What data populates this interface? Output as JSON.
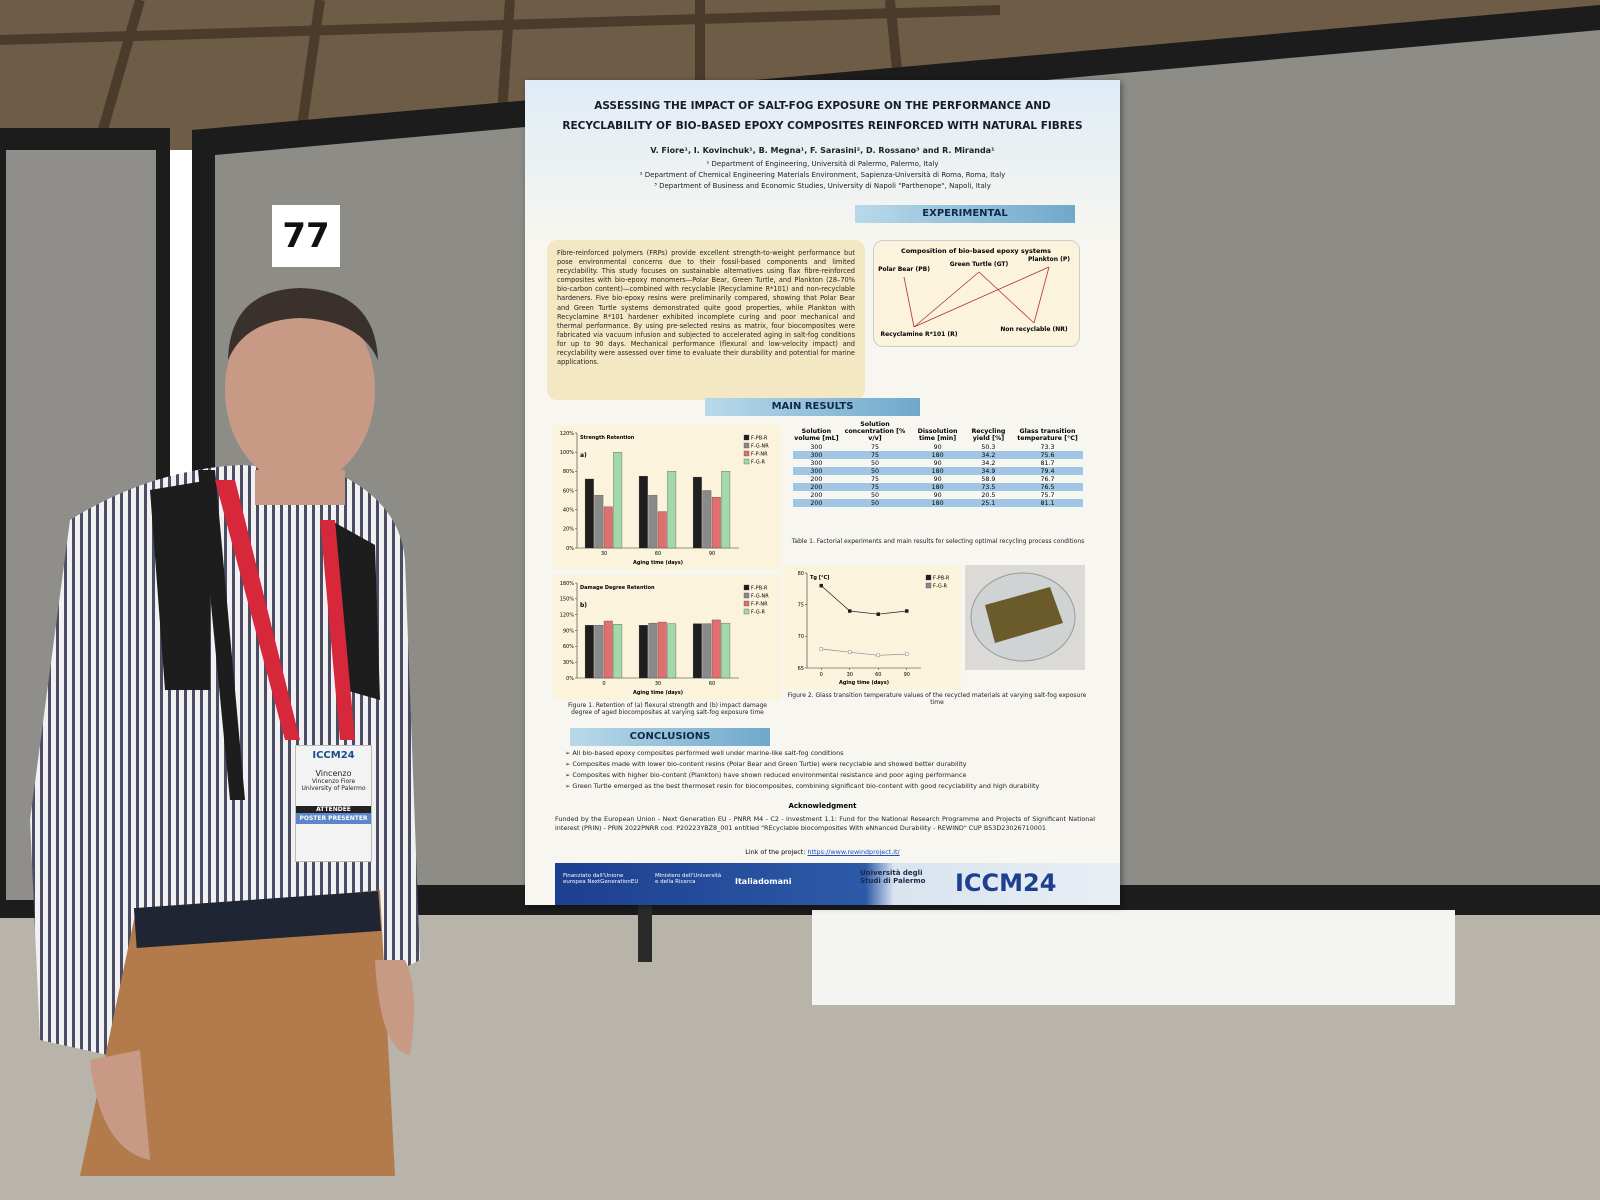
{
  "scene": {
    "booth_number": "77"
  },
  "badge": {
    "event": "ICCM24",
    "first_name": "Vincenzo",
    "full_name": "Vincenzo Fiore",
    "affiliation": "University of Palermo",
    "role": "ATTENDEE",
    "ribbon": "POSTER PRESENTER"
  },
  "poster": {
    "title": [
      "ASSESSING THE IMPACT OF SALT-FOG EXPOSURE ON THE PERFORMANCE AND",
      "RECYCLABILITY OF BIO-BASED EPOXY COMPOSITES REINFORCED WITH NATURAL FIBRES"
    ],
    "authors": "V. Fiore¹, I. Kovinchuk¹, B. Megna¹, F. Sarasini², D. Rossano³ and R. Miranda¹",
    "affiliations": [
      "¹ Department of Engineering, Università di Palermo, Palermo, Italy",
      "² Department of Chemical Engineering Materials Environment, Sapienza-Università di Roma, Roma, Italy",
      "³ Department of Business and Economic Studies, University di Napoli \"Parthenope\", Napoli, Italy"
    ],
    "experimental": {
      "heading": "EXPERIMENTAL",
      "abstract": "Fibre-reinforced polymers (FRPs) provide excellent strength-to-weight performance but pose environmental concerns due to their fossil-based components and limited recyclability. This study focuses on sustainable alternatives using flax fibre-reinforced composites with bio-epoxy monomers—Polar Bear, Green Turtle, and Plankton (28–70% bio-carbon content)—combined with recyclable (Recyclamine R*101) and non-recyclable hardeners. Five bio-epoxy resins were preliminarily compared, showing that Polar Bear and Green Turtle systems demonstrated quite good properties, while Plankton with Recyclamine R*101 hardener exhibited incomplete curing and poor mechanical and thermal performance. By using pre-selected resins as matrix, four biocomposites were fabricated via vacuum infusion and subjected to accelerated aging in salt-fog conditions for up to 90 days. Mechanical performance (flexural and low-velocity impact) and recyclability were assessed over time to evaluate their durability and potential for marine applications.",
      "diagram": {
        "title": "Composition of bio-based epoxy systems",
        "polar_bear": "Polar Bear (PB)",
        "green_turtle": "Green Turtle (GT)",
        "plankton": "Plankton (P)",
        "recyclable": "Recyclamine R*101 (R)",
        "non_recyclable": "Non recyclable (NR)"
      }
    },
    "main_results": {
      "heading": "MAIN RESULTS",
      "table": {
        "headers": [
          "Solution volume [mL]",
          "Solution concentration [% v/v]",
          "Dissolution time [min]",
          "Recycling yield [%]",
          "Glass transition temperature [°C]"
        ],
        "rows": [
          [
            300,
            75,
            90,
            50.3,
            73.3
          ],
          [
            300,
            75,
            180,
            34.2,
            75.6
          ],
          [
            300,
            50,
            90,
            34.2,
            81.7
          ],
          [
            300,
            50,
            180,
            34.9,
            79.4
          ],
          [
            200,
            75,
            90,
            58.9,
            76.7
          ],
          [
            200,
            75,
            180,
            73.5,
            76.5
          ],
          [
            200,
            50,
            90,
            20.5,
            75.7
          ],
          [
            200,
            50,
            180,
            25.1,
            81.1
          ]
        ],
        "caption": "Table 1. Factorial experiments and main results for selecting optimal recycling process conditions"
      },
      "figure1_caption": "Figure 1. Retention of (a) flexural strength and (b) impact damage degree of aged biocomposites at varying salt-fog exposure time",
      "figure2_caption": "Figure 2. Glass transition temperature values of the recycled materials at varying salt-fog exposure time"
    },
    "conclusions": {
      "heading": "CONCLUSIONS",
      "items": [
        "All bio-based epoxy composites performed well under marine-like salt-fog conditions",
        "Composites made with lower bio-content resins (Polar Bear and Green Turtle) were recyclable and showed better durability",
        "Composites with higher bio-content (Plankton) have shown reduced environmental resistance and poor aging performance",
        "Green Turtle emerged as the best thermoset resin for biocomposites, combining significant bio-content with good recyclability and high durability"
      ]
    },
    "acknowledgment": {
      "heading": "Acknowledgment",
      "text": "Funded by the European Union - Next Generation EU - PNRR M4 - C2 - investment 1.1: Fund for the National Research Programme and Projects of Significant National interest (PRIN) - PRIN 2022PNRR cod. P20223YBZ8_001 entitled \"REcyclable biocomposites With eNhanced Durability - REWIND\" CUP B53D23026710001",
      "link_label": "Link of the project:",
      "link": "https://www.rewindproject.it/"
    },
    "footer": {
      "eu": "Finanziato dall'Unione europea NextGenerationEU",
      "ministry": "Ministero dell'Università e della Ricerca",
      "italiadomani": "Italiadomani",
      "university": "Università degli Studi di Palermo",
      "conference": "ICCM24"
    }
  },
  "chart_data": [
    {
      "type": "bar",
      "panel_label": "a)",
      "y_label": "Strength Retention",
      "x_label": "Aging time (days)",
      "categories": [
        "30",
        "60",
        "90"
      ],
      "series": [
        {
          "name": "F-PB-R",
          "color": "#1e1e1e",
          "values": [
            72,
            75,
            74
          ]
        },
        {
          "name": "F-G-NR",
          "color": "#8a8a8a",
          "values": [
            55,
            55,
            60
          ]
        },
        {
          "name": "F-P-NR",
          "color": "#e06f6f",
          "values": [
            43,
            38,
            53
          ]
        },
        {
          "name": "F-G-R",
          "color": "#a3d9a8",
          "values": [
            100,
            80,
            80
          ]
        }
      ],
      "ylim": [
        0,
        120
      ],
      "yticks": [
        {
          "value": 0,
          "label": "0%"
        },
        {
          "value": 20,
          "label": "20%"
        },
        {
          "value": 40,
          "label": "40%"
        },
        {
          "value": 60,
          "label": "60%"
        },
        {
          "value": 80,
          "label": "80%"
        },
        {
          "value": 100,
          "label": "100%"
        },
        {
          "value": 120,
          "label": "120%"
        }
      ]
    },
    {
      "type": "bar",
      "panel_label": "b)",
      "y_label": "Damage Degree Retention",
      "x_label": "Aging time (days)",
      "categories": [
        "0",
        "30",
        "60"
      ],
      "series": [
        {
          "name": "F-PB-R",
          "color": "#1e1e1e",
          "values": [
            100,
            100,
            103
          ]
        },
        {
          "name": "F-G-NR",
          "color": "#8a8a8a",
          "values": [
            100,
            104,
            103
          ]
        },
        {
          "name": "F-P-NR",
          "color": "#e06f6f",
          "values": [
            108,
            106,
            110
          ]
        },
        {
          "name": "F-G-R",
          "color": "#a3d9a8",
          "values": [
            102,
            103,
            104
          ]
        }
      ],
      "ylim": [
        0,
        180
      ],
      "yticks": [
        {
          "value": 0,
          "label": "0%"
        },
        {
          "value": 30,
          "label": "30%"
        },
        {
          "value": 60,
          "label": "60%"
        },
        {
          "value": 90,
          "label": "90%"
        },
        {
          "value": 120,
          "label": "120%"
        },
        {
          "value": 150,
          "label": "150%"
        },
        {
          "value": 180,
          "label": "180%"
        }
      ]
    },
    {
      "type": "line",
      "y_label": "Tg [°C]",
      "x_label": "Aging time (days)",
      "x": [
        0,
        30,
        60,
        90
      ],
      "series": [
        {
          "name": "F-PB-R",
          "color": "#1e1e1e",
          "values": [
            78,
            74,
            73.5,
            74
          ]
        },
        {
          "name": "F-G-R",
          "color": "#8a8a8a",
          "values": [
            68,
            67.5,
            67,
            67.2
          ]
        }
      ],
      "xlim": [
        -15,
        105
      ],
      "xticks": [
        0,
        30,
        60,
        90
      ],
      "ylim": [
        65,
        80
      ],
      "yticks": [
        65,
        70,
        75,
        80
      ]
    }
  ]
}
